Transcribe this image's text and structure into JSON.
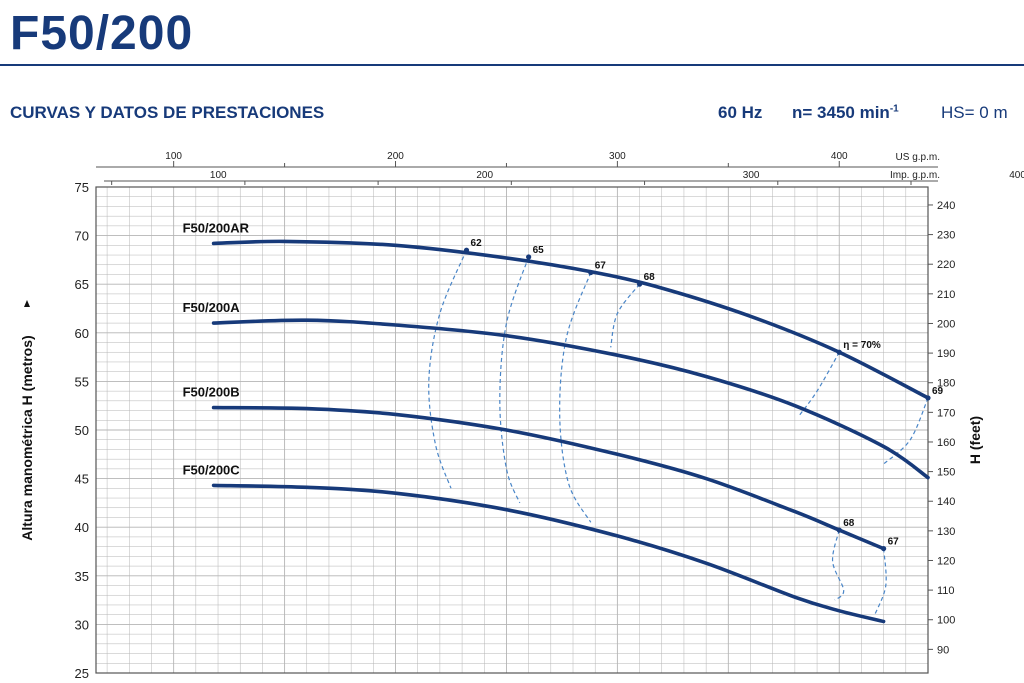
{
  "header": {
    "title": "F50/200",
    "subtitle": "CURVAS Y DATOS DE PRESTACIONES",
    "frequency": "60 Hz",
    "speed": "n= 3450 min",
    "speed_exp": "-1",
    "hs": "HS= 0 m"
  },
  "chart_data": {
    "type": "line",
    "ylabel": "Altura manométrica H  (metros)",
    "ylabel_right": "H (feet)",
    "ylim": [
      25,
      75
    ],
    "yticks": [
      25,
      30,
      35,
      40,
      45,
      50,
      55,
      60,
      65,
      70,
      75
    ],
    "right_axis_ticks": [
      90,
      100,
      110,
      120,
      130,
      140,
      150,
      160,
      170,
      180,
      190,
      200,
      210,
      220,
      230,
      240
    ],
    "xlim_us_gpm": [
      65,
      440
    ],
    "top_axis_us": {
      "unit": "US g.p.m.",
      "ticks": [
        100,
        200,
        300,
        400
      ]
    },
    "top_axis_imp": {
      "unit": "Imp. g.p.m.",
      "ticks": [
        100,
        200,
        300,
        400
      ]
    },
    "grid": true,
    "x_unit": "US g.p.m.",
    "series": [
      {
        "name": "F50/200AR",
        "x": [
          118,
          150,
          200,
          250,
          290,
          320,
          360,
          400,
          440
        ],
        "y": [
          69.2,
          69.4,
          69.0,
          67.7,
          66.2,
          64.6,
          61.7,
          58.0,
          53.3
        ]
      },
      {
        "name": "F50/200A",
        "x": [
          118,
          160,
          200,
          250,
          300,
          340,
          380,
          420,
          440
        ],
        "y": [
          61.0,
          61.3,
          60.8,
          59.7,
          57.7,
          55.5,
          52.5,
          48.3,
          45.1
        ]
      },
      {
        "name": "F50/200B",
        "x": [
          118,
          160,
          200,
          250,
          300,
          340,
          380,
          400,
          420
        ],
        "y": [
          52.3,
          52.2,
          51.6,
          50.0,
          47.5,
          45.0,
          41.6,
          39.7,
          37.8
        ]
      },
      {
        "name": "F50/200C",
        "x": [
          118,
          160,
          200,
          250,
          300,
          340,
          380,
          400,
          420
        ],
        "y": [
          44.3,
          44.1,
          43.5,
          41.8,
          39.1,
          36.3,
          32.8,
          31.4,
          30.3
        ]
      }
    ],
    "efficiency_label_prefix": "η = ",
    "efficiency_curves": [
      {
        "label": "62",
        "x": [
          232,
          220,
          215,
          218,
          225
        ],
        "y": [
          68.5,
          62.0,
          55.0,
          48.5,
          44.0
        ]
      },
      {
        "label": "65",
        "x": [
          260,
          250,
          247,
          250,
          256
        ],
        "y": [
          67.8,
          61.0,
          53.0,
          46.0,
          42.5
        ]
      },
      {
        "label": "67",
        "x": [
          288,
          277,
          274,
          278,
          288
        ],
        "y": [
          66.2,
          59.5,
          51.5,
          44.5,
          40.5
        ]
      },
      {
        "label": "68",
        "x": [
          310,
          300,
          297
        ],
        "y": [
          65.0,
          62.0,
          58.5
        ]
      },
      {
        "label": "70%",
        "x": [
          400,
          390,
          382
        ],
        "y": [
          58.0,
          54.0,
          51.5
        ]
      },
      {
        "label": "69",
        "x": [
          440,
          432,
          420
        ],
        "y": [
          53.3,
          49.0,
          46.5
        ]
      },
      {
        "label": "68",
        "x": [
          400,
          397,
          402,
          398
        ],
        "y": [
          39.7,
          36.5,
          33.5,
          32.5
        ]
      },
      {
        "label": "67",
        "x": [
          420,
          421,
          416
        ],
        "y": [
          37.8,
          34.0,
          31.0
        ]
      }
    ],
    "curve_labels": [
      "F50/200AR",
      "F50/200A",
      "F50/200B",
      "F50/200C"
    ]
  },
  "colors": {
    "brand": "#173a7a",
    "curve": "#173a7a",
    "efficiency": "#4a86c8",
    "grid": "#b5b5b5",
    "axis": "#555555"
  }
}
